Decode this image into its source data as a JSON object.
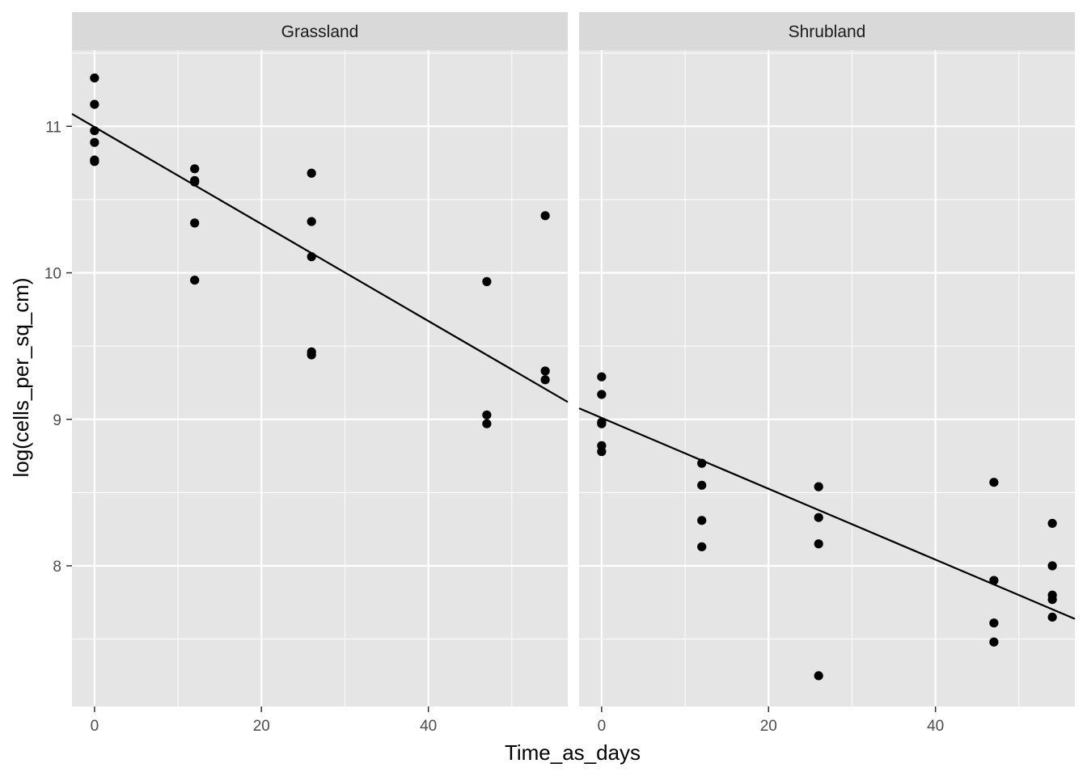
{
  "chart_data": {
    "type": "scatter",
    "x_label": "Time_as_days",
    "y_label": "log(cells_per_sq_cm)",
    "x_ticks": [
      0,
      20,
      40
    ],
    "y_ticks": [
      8,
      9,
      10,
      11
    ],
    "xlim": [
      -2.7,
      56.7
    ],
    "ylim": [
      7.04,
      11.52
    ],
    "grid": true,
    "colors": {
      "panel_background": "#e5e5e5",
      "strip_background": "#d9d9d9",
      "grid": "#ffffff",
      "points": "#000000",
      "fit_line": "#000000"
    },
    "panels": [
      {
        "label": "Grassland",
        "points": [
          {
            "x": 0,
            "y": 11.33
          },
          {
            "x": 0,
            "y": 11.15
          },
          {
            "x": 0,
            "y": 10.97
          },
          {
            "x": 0,
            "y": 10.89
          },
          {
            "x": 0,
            "y": 10.77
          },
          {
            "x": 0,
            "y": 10.76
          },
          {
            "x": 12,
            "y": 10.71
          },
          {
            "x": 12,
            "y": 10.63
          },
          {
            "x": 12,
            "y": 10.62
          },
          {
            "x": 12,
            "y": 10.34
          },
          {
            "x": 12,
            "y": 9.95
          },
          {
            "x": 26,
            "y": 10.68
          },
          {
            "x": 26,
            "y": 10.35
          },
          {
            "x": 26,
            "y": 10.11
          },
          {
            "x": 26,
            "y": 9.46
          },
          {
            "x": 26,
            "y": 9.44
          },
          {
            "x": 47,
            "y": 9.94
          },
          {
            "x": 47,
            "y": 9.03
          },
          {
            "x": 47,
            "y": 8.97
          },
          {
            "x": 54,
            "y": 10.39
          },
          {
            "x": 54,
            "y": 9.33
          },
          {
            "x": 54,
            "y": 9.27
          }
        ],
        "fit": {
          "intercept": 10.995,
          "slope": -0.0331
        }
      },
      {
        "label": "Shrubland",
        "points": [
          {
            "x": 0,
            "y": 9.29
          },
          {
            "x": 0,
            "y": 9.17
          },
          {
            "x": 0,
            "y": 8.98
          },
          {
            "x": 0,
            "y": 8.97
          },
          {
            "x": 0,
            "y": 8.82
          },
          {
            "x": 0,
            "y": 8.78
          },
          {
            "x": 12,
            "y": 8.7
          },
          {
            "x": 12,
            "y": 8.55
          },
          {
            "x": 12,
            "y": 8.31
          },
          {
            "x": 12,
            "y": 8.13
          },
          {
            "x": 26,
            "y": 8.54
          },
          {
            "x": 26,
            "y": 8.33
          },
          {
            "x": 26,
            "y": 8.15
          },
          {
            "x": 26,
            "y": 7.25
          },
          {
            "x": 47,
            "y": 8.57
          },
          {
            "x": 47,
            "y": 7.9
          },
          {
            "x": 47,
            "y": 7.61
          },
          {
            "x": 47,
            "y": 7.48
          },
          {
            "x": 54,
            "y": 8.29
          },
          {
            "x": 54,
            "y": 8.0
          },
          {
            "x": 54,
            "y": 7.8
          },
          {
            "x": 54,
            "y": 7.77
          },
          {
            "x": 54,
            "y": 7.65
          }
        ],
        "fit": {
          "intercept": 9.01,
          "slope": -0.0242
        }
      }
    ]
  }
}
